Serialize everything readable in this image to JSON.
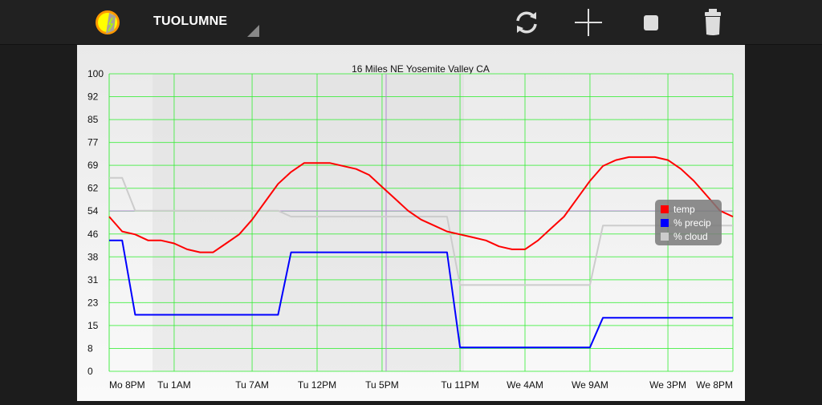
{
  "header": {
    "title": "TUOLUMNE",
    "icons": [
      "app-logo-sun-icon",
      "spinner-dropdown-icon",
      "refresh-icon",
      "add-icon",
      "stop-icon",
      "trash-icon"
    ]
  },
  "chart_data": {
    "type": "line",
    "title": "16 Miles NE Yosemite Valley CA",
    "xlabel": "",
    "ylabel": "",
    "ylim": [
      0,
      100
    ],
    "y_ticks": [
      "100",
      "92",
      "85",
      "77",
      "69",
      "62",
      "54",
      "46",
      "38",
      "31",
      "23",
      "15",
      "8",
      "0"
    ],
    "x_ticks": [
      "Mo 8PM",
      "Tu 1AM",
      "Tu 7AM",
      "Tu 12PM",
      "Tu 5PM",
      "Tu 11PM",
      "We 4AM",
      "We 9AM",
      "We 3PM",
      "We 8PM"
    ],
    "grid": true,
    "grid_color": "#33ee33",
    "legend_position": "right",
    "series": [
      {
        "name": "temp",
        "color": "#ff0000",
        "points": [
          [
            "Mo 8PM",
            52
          ],
          [
            "Mo 9PM",
            47
          ],
          [
            "Mo 10PM",
            46
          ],
          [
            "Mo 11PM",
            44
          ],
          [
            "Tu 12AM",
            44
          ],
          [
            "Tu 1AM",
            43
          ],
          [
            "Tu 2AM",
            41
          ],
          [
            "Tu 3AM",
            40
          ],
          [
            "Tu 4AM",
            40
          ],
          [
            "Tu 5AM",
            43
          ],
          [
            "Tu 6AM",
            46
          ],
          [
            "Tu 7AM",
            51
          ],
          [
            "Tu 8AM",
            57
          ],
          [
            "Tu 9AM",
            63
          ],
          [
            "Tu 10AM",
            67
          ],
          [
            "Tu 11AM",
            70
          ],
          [
            "Tu 1PM",
            70
          ],
          [
            "Tu 3PM",
            68
          ],
          [
            "Tu 4PM",
            66
          ],
          [
            "Tu 5PM",
            62
          ],
          [
            "Tu 6PM",
            58
          ],
          [
            "Tu 7PM",
            54
          ],
          [
            "Tu 8PM",
            51
          ],
          [
            "Tu 9PM",
            49
          ],
          [
            "Tu 10PM",
            47
          ],
          [
            "Tu 11PM",
            46
          ],
          [
            "We 12AM",
            45
          ],
          [
            "We 1AM",
            44
          ],
          [
            "We 2AM",
            42
          ],
          [
            "We 3AM",
            41
          ],
          [
            "We 4AM",
            41
          ],
          [
            "We 5AM",
            44
          ],
          [
            "We 6AM",
            48
          ],
          [
            "We 7AM",
            52
          ],
          [
            "We 8AM",
            58
          ],
          [
            "We 9AM",
            64
          ],
          [
            "We 10AM",
            69
          ],
          [
            "We 11AM",
            71
          ],
          [
            "We 12PM",
            72
          ],
          [
            "We 2PM",
            72
          ],
          [
            "We 3PM",
            71
          ],
          [
            "We 4PM",
            68
          ],
          [
            "We 5PM",
            64
          ],
          [
            "We 6PM",
            59
          ],
          [
            "We 7PM",
            54
          ],
          [
            "We 8PM",
            52
          ]
        ]
      },
      {
        "name": "% precip",
        "color": "#0000ff",
        "points": [
          [
            "Mo 8PM",
            44
          ],
          [
            "Mo 9PM",
            44
          ],
          [
            "Mo 10PM",
            19
          ],
          [
            "Tu 9AM",
            19
          ],
          [
            "Tu 10AM",
            40
          ],
          [
            "Tu 10PM",
            40
          ],
          [
            "Tu 11PM",
            8
          ],
          [
            "We 9AM",
            8
          ],
          [
            "We 10AM",
            18
          ],
          [
            "We 8PM",
            18
          ]
        ]
      },
      {
        "name": "% cloud",
        "color": "#cccccc",
        "points": [
          [
            "Mo 8PM",
            65
          ],
          [
            "Mo 9PM",
            65
          ],
          [
            "Mo 10PM",
            54
          ],
          [
            "Tu 9AM",
            54
          ],
          [
            "Tu 10AM",
            52
          ],
          [
            "Tu 10PM",
            52
          ],
          [
            "Tu 11PM",
            29
          ],
          [
            "We 9AM",
            29
          ],
          [
            "We 10AM",
            49
          ],
          [
            "We 8PM",
            49
          ]
        ]
      }
    ]
  }
}
